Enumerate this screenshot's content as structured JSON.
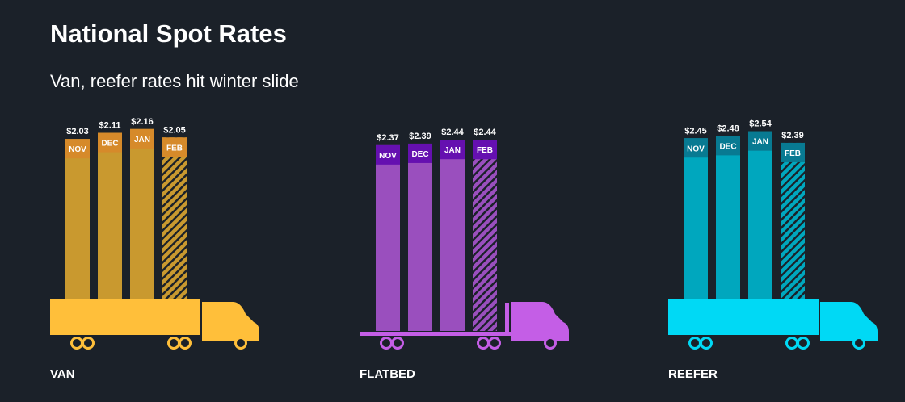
{
  "title": "National Spot Rates",
  "subtitle": "Van, reefer rates hit winter slide",
  "chart_data": [
    {
      "type": "bar",
      "label": "VAN",
      "categories": [
        "NOV",
        "DEC",
        "JAN",
        "FEB"
      ],
      "values": [
        2.03,
        2.11,
        2.16,
        2.05
      ],
      "value_labels": [
        "$2.03",
        "$2.11",
        "$2.16",
        "$2.05"
      ],
      "color": "#c9992f",
      "label_box_color": "#d68a2a",
      "truck_color": "#ffbf3a"
    },
    {
      "type": "bar",
      "label": "FLATBED",
      "categories": [
        "NOV",
        "DEC",
        "JAN",
        "FEB"
      ],
      "values": [
        2.37,
        2.39,
        2.44,
        2.44
      ],
      "value_labels": [
        "$2.37",
        "$2.39",
        "$2.44",
        "$2.44"
      ],
      "color": "#9a4fbe",
      "label_box_color": "#6510b0",
      "truck_color": "#c45ee6"
    },
    {
      "type": "bar",
      "label": "REEFER",
      "categories": [
        "NOV",
        "DEC",
        "JAN",
        "FEB"
      ],
      "values": [
        2.45,
        2.48,
        2.54,
        2.39
      ],
      "value_labels": [
        "$2.45",
        "$2.48",
        "$2.54",
        "$2.39"
      ],
      "color": "#00a7be",
      "label_box_color": "#087a92",
      "truck_color": "#00d9f5"
    }
  ]
}
